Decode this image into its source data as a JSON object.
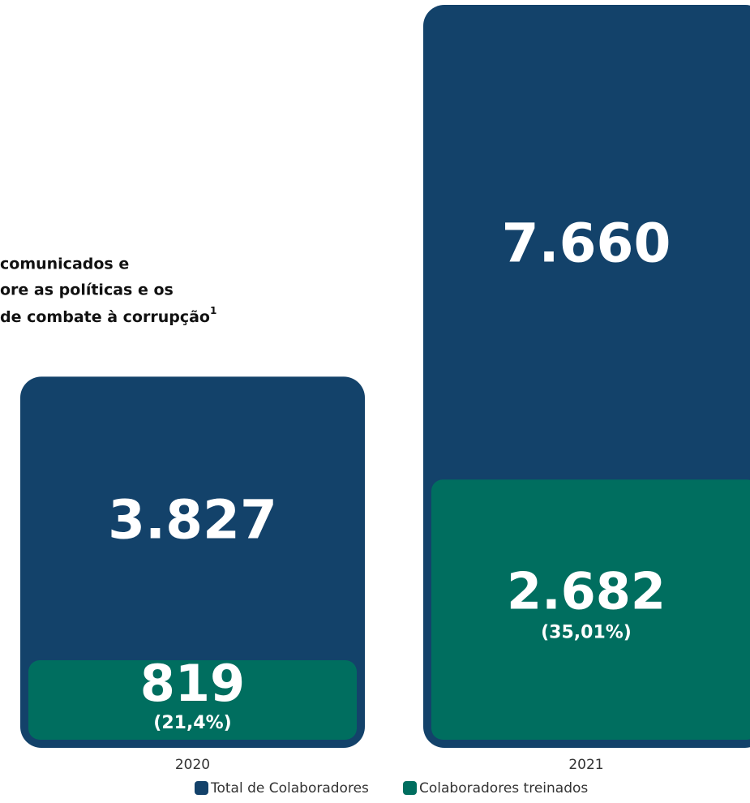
{
  "chart_data": {
    "type": "nested-bar",
    "title_lines": [
      "comunicados e",
      "ore as políticas e os",
      "de combate à corrupção"
    ],
    "title_footnote": "1",
    "categories": [
      "2020",
      "2021"
    ],
    "series": [
      {
        "name": "Total de Colaboradores",
        "color": "#13426a",
        "values": [
          3827,
          7660
        ],
        "value_labels": [
          "3.827",
          "7.660"
        ]
      },
      {
        "name": "Colaboradores treinados",
        "color": "#006e5f",
        "values": [
          819,
          2682
        ],
        "value_labels": [
          "819",
          "2.682"
        ],
        "shares": [
          21.4,
          35.01
        ],
        "share_labels": [
          "(21,4%)",
          "(35,01%)"
        ]
      }
    ]
  }
}
